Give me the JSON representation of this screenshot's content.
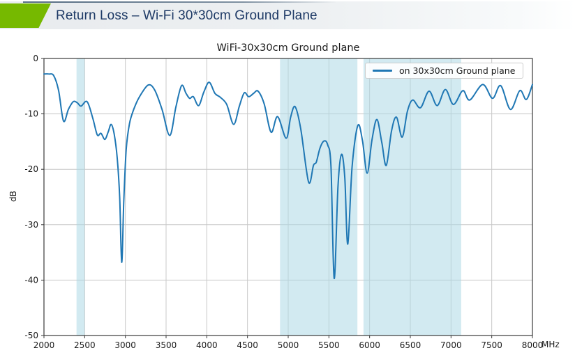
{
  "header": {
    "title": "Return Loss – Wi-Fi 30*30cm Ground Plane",
    "accent_color": "#76b900",
    "title_color": "#1e3a66"
  },
  "chart_data": {
    "type": "line",
    "title": "WiFi-30x30cm Ground plane",
    "xlabel": "MHz",
    "ylabel": "dB",
    "xlim": [
      2000,
      8000
    ],
    "ylim": [
      -50,
      0
    ],
    "x_ticks": [
      2000,
      2500,
      3000,
      3500,
      4000,
      4500,
      5000,
      5500,
      6000,
      6500,
      7000,
      7500,
      8000
    ],
    "y_ticks": [
      0,
      -10,
      -20,
      -30,
      -40,
      -50
    ],
    "grid": true,
    "grid_color": "#c8c8c8",
    "spine_color": "#3a3a3a",
    "text_color": "#1a1a1a",
    "band_color": "#add8e6",
    "band_opacity": 0.55,
    "highlight_bands": [
      {
        "from": 2400,
        "to": 2500
      },
      {
        "from": 4900,
        "to": 5850
      },
      {
        "from": 5925,
        "to": 7125
      }
    ],
    "legend": {
      "position": "upper right",
      "entries": [
        {
          "label": "on 30x30cm Ground plane",
          "color": "#1f77b4"
        }
      ]
    },
    "series": [
      {
        "name": "on 30x30cm Ground plane",
        "color": "#1f77b4",
        "points": [
          [
            2000,
            -2.8
          ],
          [
            2060,
            -2.8
          ],
          [
            2120,
            -3.1
          ],
          [
            2180,
            -5.8
          ],
          [
            2240,
            -11.3
          ],
          [
            2300,
            -9.2
          ],
          [
            2360,
            -7.8
          ],
          [
            2410,
            -8.0
          ],
          [
            2455,
            -8.6
          ],
          [
            2530,
            -7.8
          ],
          [
            2600,
            -10.8
          ],
          [
            2655,
            -13.8
          ],
          [
            2700,
            -13.5
          ],
          [
            2748,
            -14.6
          ],
          [
            2790,
            -13.2
          ],
          [
            2825,
            -11.9
          ],
          [
            2862,
            -13.6
          ],
          [
            2900,
            -18.0
          ],
          [
            2930,
            -25.0
          ],
          [
            2955,
            -36.8
          ],
          [
            2980,
            -26.0
          ],
          [
            3010,
            -16.5
          ],
          [
            3050,
            -11.8
          ],
          [
            3105,
            -9.1
          ],
          [
            3170,
            -7.0
          ],
          [
            3280,
            -4.8
          ],
          [
            3360,
            -5.7
          ],
          [
            3450,
            -9.2
          ],
          [
            3545,
            -13.9
          ],
          [
            3620,
            -8.8
          ],
          [
            3690,
            -4.9
          ],
          [
            3745,
            -6.3
          ],
          [
            3790,
            -7.2
          ],
          [
            3835,
            -6.9
          ],
          [
            3900,
            -8.5
          ],
          [
            3965,
            -6.0
          ],
          [
            4030,
            -4.3
          ],
          [
            4100,
            -6.3
          ],
          [
            4165,
            -7.0
          ],
          [
            4245,
            -8.3
          ],
          [
            4330,
            -11.9
          ],
          [
            4400,
            -8.6
          ],
          [
            4460,
            -6.2
          ],
          [
            4515,
            -6.9
          ],
          [
            4575,
            -6.3
          ],
          [
            4630,
            -5.9
          ],
          [
            4705,
            -8.2
          ],
          [
            4790,
            -13.3
          ],
          [
            4870,
            -10.5
          ],
          [
            4975,
            -14.4
          ],
          [
            5030,
            -10.6
          ],
          [
            5085,
            -8.7
          ],
          [
            5155,
            -12.8
          ],
          [
            5250,
            -22.3
          ],
          [
            5310,
            -19.3
          ],
          [
            5345,
            -18.7
          ],
          [
            5390,
            -16.2
          ],
          [
            5440,
            -14.9
          ],
          [
            5485,
            -15.6
          ],
          [
            5525,
            -19.5
          ],
          [
            5565,
            -39.7
          ],
          [
            5612,
            -23.0
          ],
          [
            5655,
            -17.3
          ],
          [
            5695,
            -21.5
          ],
          [
            5732,
            -33.5
          ],
          [
            5785,
            -19.5
          ],
          [
            5855,
            -12.1
          ],
          [
            5912,
            -14.8
          ],
          [
            5970,
            -20.7
          ],
          [
            6030,
            -14.6
          ],
          [
            6090,
            -11.0
          ],
          [
            6150,
            -15.2
          ],
          [
            6205,
            -19.3
          ],
          [
            6270,
            -13.0
          ],
          [
            6330,
            -10.6
          ],
          [
            6400,
            -14.2
          ],
          [
            6465,
            -9.5
          ],
          [
            6530,
            -7.5
          ],
          [
            6625,
            -8.9
          ],
          [
            6730,
            -5.9
          ],
          [
            6830,
            -8.5
          ],
          [
            6930,
            -5.6
          ],
          [
            7030,
            -8.3
          ],
          [
            7145,
            -5.8
          ],
          [
            7230,
            -7.5
          ],
          [
            7390,
            -4.7
          ],
          [
            7510,
            -7.2
          ],
          [
            7610,
            -4.9
          ],
          [
            7730,
            -9.2
          ],
          [
            7845,
            -5.8
          ],
          [
            7925,
            -7.4
          ],
          [
            8000,
            -4.7
          ]
        ]
      }
    ]
  }
}
